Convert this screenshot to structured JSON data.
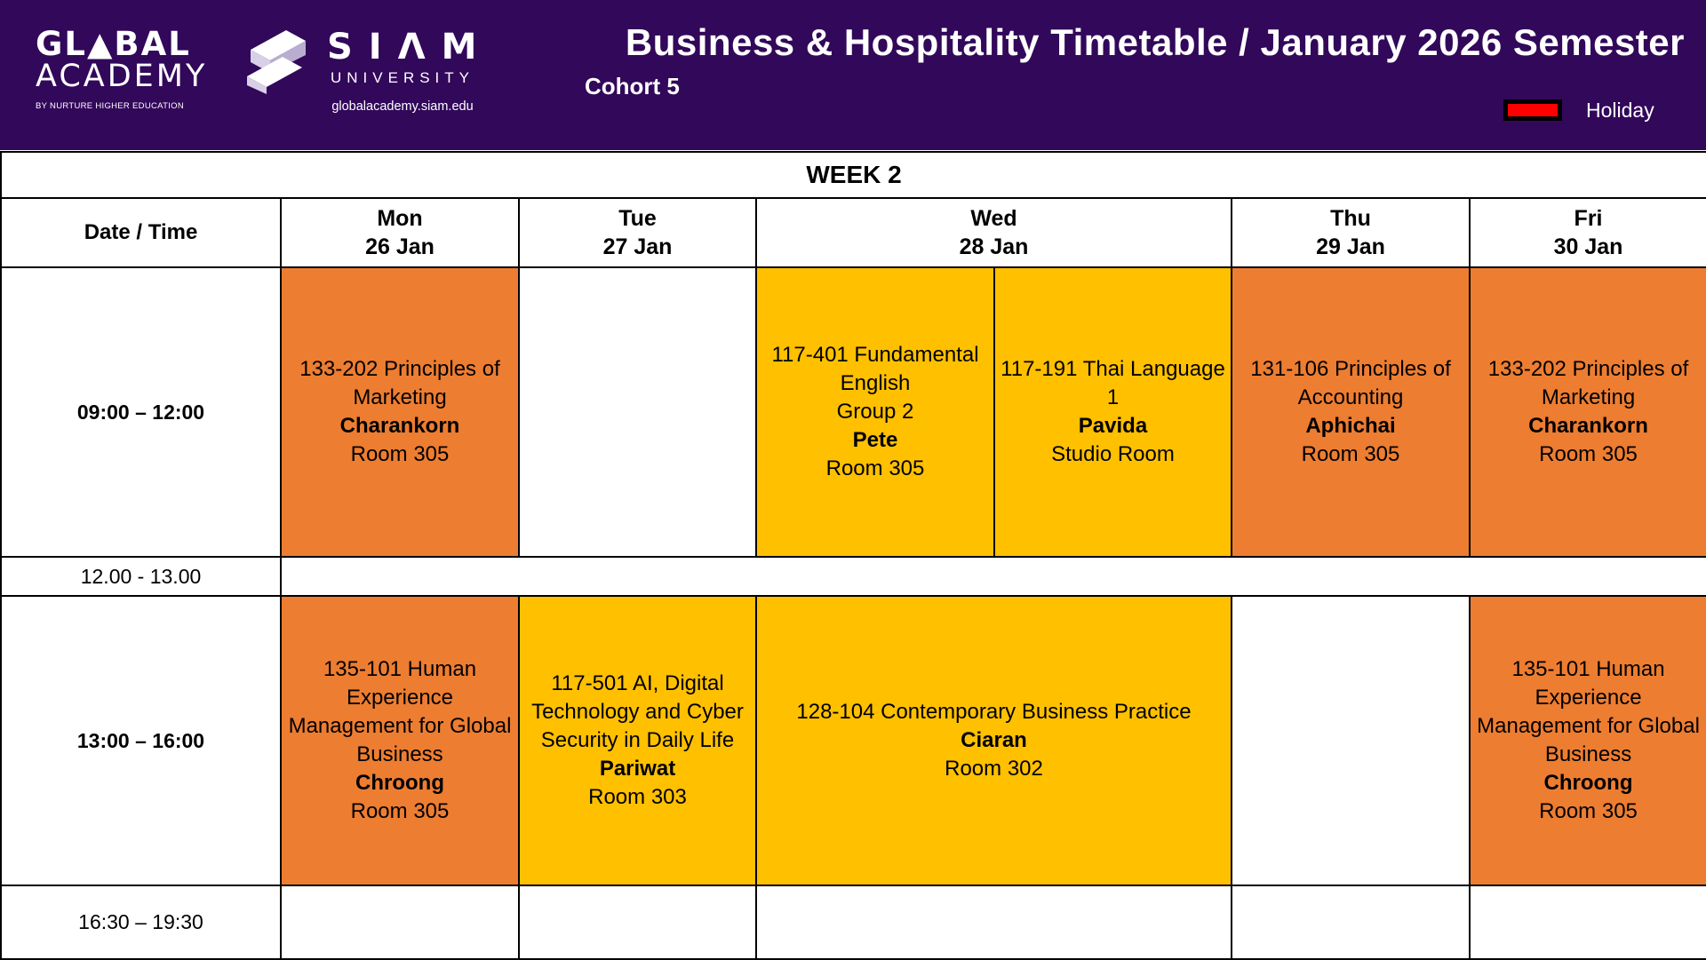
{
  "header": {
    "ga_logo": {
      "line1": "GL▲BAL",
      "line2": "ACADEMY",
      "tagline": "BY NURTURE HIGHER EDUCATION"
    },
    "siam_logo": {
      "name": "SIΛM",
      "sub": "UNIVERSITY",
      "url": "globalacademy.siam.edu"
    },
    "title": "Business & Hospitality Timetable / January 2026 Semester",
    "cohort": "Cohort 5",
    "legend": {
      "label": "Holiday",
      "color": "#ff0000"
    }
  },
  "colors": {
    "header_bg": "#32085a",
    "orange": "#ed7d31",
    "yellow": "#ffc000"
  },
  "table": {
    "week": "WEEK 2",
    "corner": "Date / Time",
    "days": [
      {
        "day": "Mon",
        "date": "26 Jan"
      },
      {
        "day": "Tue",
        "date": "27 Jan"
      },
      {
        "day": "Wed",
        "date": "28 Jan"
      },
      {
        "day": "Thu",
        "date": "29 Jan"
      },
      {
        "day": "Fri",
        "date": "30 Jan"
      }
    ],
    "times": [
      "09:00 – 12:00",
      "12.00 - 13.00",
      "13:00 – 16:00",
      "16:30 – 19:30"
    ],
    "morning": {
      "mon": {
        "course": "133-202 Principles of Marketing",
        "teacher": "Charankorn",
        "room": "Room 305"
      },
      "wed_a": {
        "course": "117-401 Fundamental English",
        "group": "Group 2",
        "teacher": "Pete",
        "room": "Room 305"
      },
      "wed_b": {
        "course": "117-191 Thai Language 1",
        "teacher": "Pavida",
        "room": "Studio Room"
      },
      "thu": {
        "course": "131-106 Principles of Accounting",
        "teacher": "Aphichai",
        "room": "Room 305"
      },
      "fri": {
        "course": "133-202 Principles of Marketing",
        "teacher": "Charankorn",
        "room": "Room 305"
      }
    },
    "afternoon": {
      "mon": {
        "course": "135-101 Human Experience Management for Global Business",
        "teacher": "Chroong",
        "room": "Room 305"
      },
      "tue": {
        "course": "117-501 AI, Digital Technology and Cyber Security in Daily Life",
        "teacher": "Pariwat",
        "room": "Room 303"
      },
      "wed": {
        "course": "128-104 Contemporary Business Practice",
        "teacher": "Ciaran",
        "room": "Room 302"
      },
      "fri": {
        "course": "135-101 Human Experience Management for Global Business",
        "teacher": "Chroong",
        "room": "Room 305"
      }
    }
  }
}
